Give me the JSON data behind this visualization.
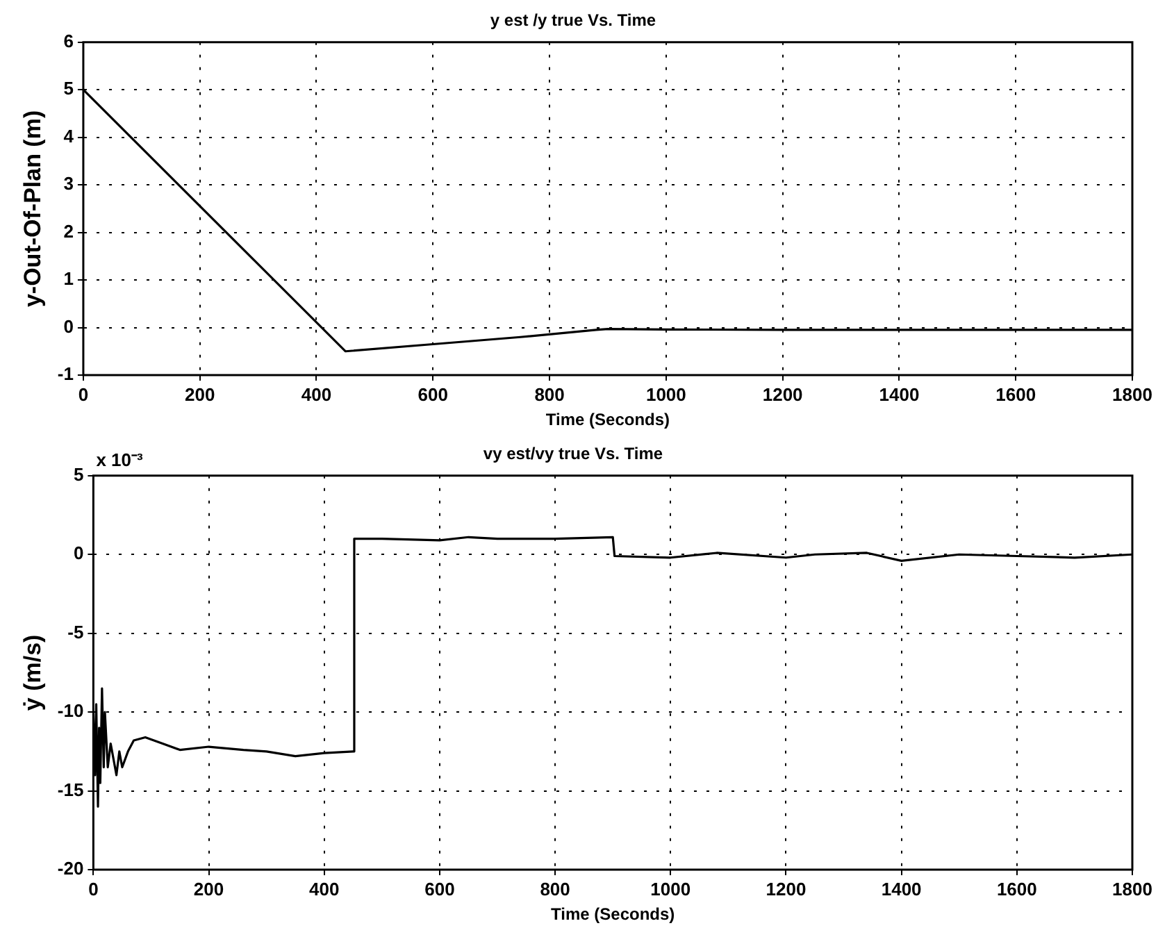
{
  "chart_data": [
    {
      "type": "line",
      "title": "y est /y true Vs. Time",
      "xlabel": "Time (Seconds)",
      "ylabel": "y-Out-Of-Plan (m)",
      "series": [
        {
          "color": "#000000",
          "x": [
            0,
            450,
            600,
            750,
            880,
            900,
            1000,
            1200,
            1400,
            1600,
            1800
          ],
          "values": [
            5,
            -0.5,
            -0.35,
            -0.2,
            -0.05,
            -0.03,
            -0.04,
            -0.05,
            -0.05,
            -0.05,
            -0.05
          ]
        }
      ],
      "xlim": [
        0,
        1800
      ],
      "xticks": [
        0,
        200,
        400,
        600,
        800,
        1000,
        1200,
        1400,
        1600,
        1800
      ],
      "ylim": [
        -1,
        6
      ],
      "yticks": [
        -1,
        0,
        1,
        2,
        3,
        4,
        5,
        6
      ],
      "grid": true,
      "legend": false,
      "marker": "none",
      "line_style": "solid"
    },
    {
      "type": "line",
      "title": "vy est/vy true Vs. Time",
      "xlabel": "Time (Seconds)",
      "ylabel": "ẏ (m/s)",
      "annotations": [
        "x 10⁻³"
      ],
      "series": [
        {
          "color": "#000000",
          "x": [
            0,
            3,
            5,
            8,
            10,
            12,
            15,
            18,
            20,
            25,
            30,
            35,
            40,
            45,
            50,
            60,
            70,
            90,
            120,
            150,
            200,
            260,
            300,
            350,
            400,
            450,
            452,
            500,
            600,
            650,
            700,
            800,
            900,
            903,
            1000,
            1080,
            1200,
            1250,
            1340,
            1400,
            1500,
            1600,
            1700,
            1800
          ],
          "values": [
            -10,
            -14,
            -9.5,
            -16,
            -11,
            -14.5,
            -8.5,
            -13.5,
            -10,
            -13.5,
            -12,
            -13,
            -14,
            -12.5,
            -13.5,
            -12.5,
            -11.8,
            -11.6,
            -12,
            -12.4,
            -12.2,
            -12.4,
            -12.5,
            -12.8,
            -12.6,
            -12.5,
            1,
            1,
            0.9,
            1.1,
            1,
            1,
            1.1,
            -0.1,
            -0.2,
            0.1,
            -0.2,
            0,
            0.1,
            -0.4,
            0,
            -0.1,
            -0.2,
            0
          ]
        }
      ],
      "xlim": [
        0,
        1800
      ],
      "xticks": [
        0,
        200,
        400,
        600,
        800,
        1000,
        1200,
        1400,
        1600,
        1800
      ],
      "ylim": [
        -20,
        5
      ],
      "yticks": [
        -20,
        -15,
        -10,
        -5,
        0,
        5
      ],
      "grid": true,
      "legend": false,
      "marker": "none",
      "line_style": "solid"
    }
  ]
}
